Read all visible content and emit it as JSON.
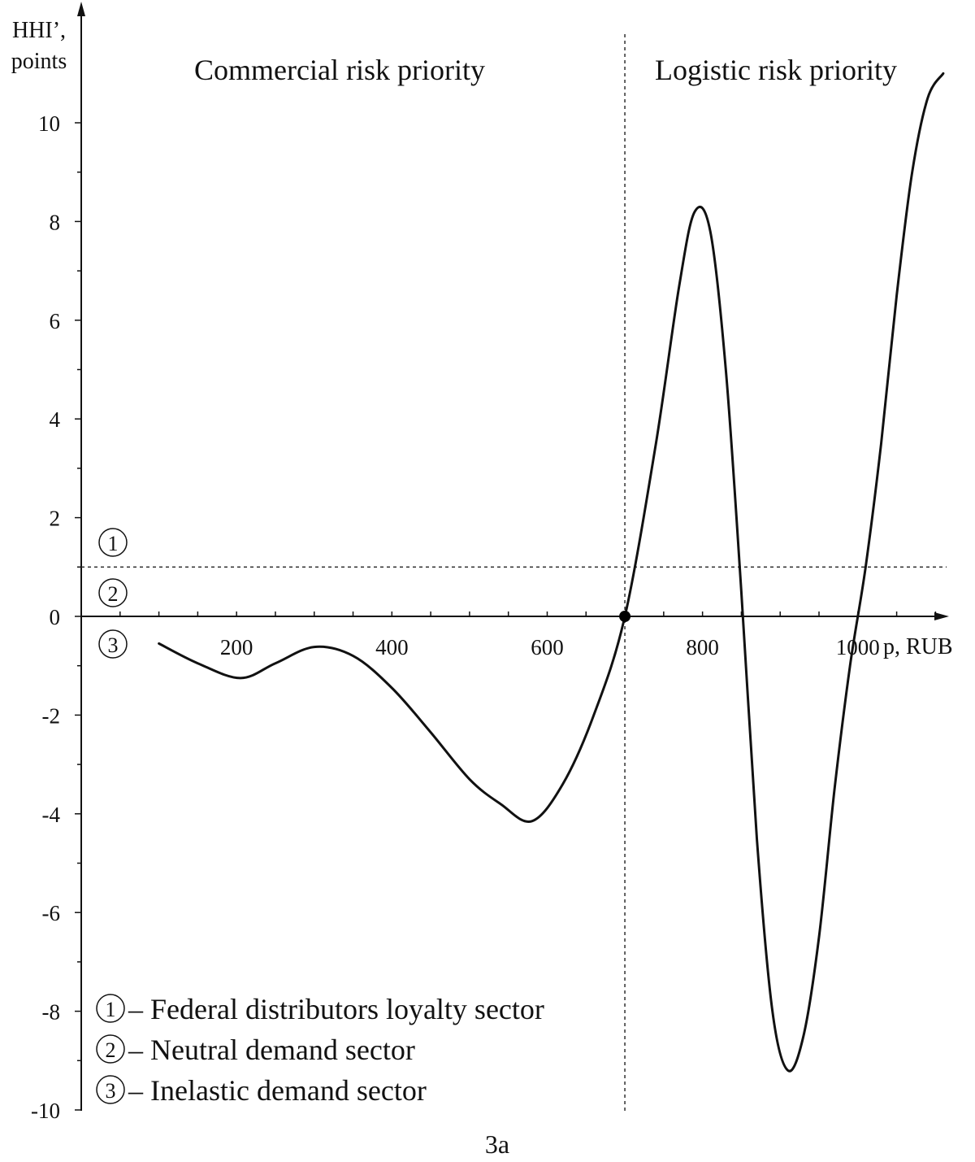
{
  "chart_data": {
    "type": "line",
    "title": "",
    "caption": "3a",
    "ylabel_line1": "HHI’,",
    "ylabel_line2": "points",
    "xlabel": "p, RUB",
    "xlim": [
      0,
      1130
    ],
    "ylim": [
      -10,
      11
    ],
    "x_ticks": [
      200,
      400,
      600,
      800,
      1000
    ],
    "y_ticks": [
      10,
      8,
      6,
      4,
      2,
      0,
      -2,
      -4,
      -6,
      -8,
      -10
    ],
    "grid": false,
    "region_labels": {
      "left": "Commercial risk priority",
      "right": "Logistic risk priority"
    },
    "reference_lines": {
      "vertical_x": 700,
      "horizontal_y": 1
    },
    "marked_point": {
      "x": 700,
      "y": 0
    },
    "sector_markers": [
      "1",
      "2",
      "3"
    ],
    "legend": [
      {
        "symbol": "1",
        "text": "– Federal distributors loyalty sector"
      },
      {
        "symbol": "2",
        "text": "– Neutral demand sector"
      },
      {
        "symbol": "3",
        "text": "– Inelastic demand sector"
      }
    ],
    "series": [
      {
        "x": [
          100,
          150,
          205,
          250,
          300,
          350,
          400,
          450,
          500,
          540,
          580,
          620,
          660,
          700,
          740,
          770,
          790,
          810,
          830,
          850,
          870,
          890,
          910,
          930,
          950,
          970,
          990,
          1010,
          1030,
          1050,
          1070,
          1090,
          1110
        ],
        "y": [
          -0.55,
          -0.95,
          -1.25,
          -0.95,
          -0.62,
          -0.8,
          -1.45,
          -2.35,
          -3.3,
          -3.8,
          -4.15,
          -3.4,
          -2.0,
          0.0,
          3.5,
          6.7,
          8.2,
          7.8,
          5.0,
          0.5,
          -4.5,
          -8.0,
          -9.2,
          -8.5,
          -6.5,
          -3.5,
          -1.0,
          1.0,
          3.5,
          6.5,
          9.0,
          10.5,
          11.0
        ]
      }
    ]
  }
}
